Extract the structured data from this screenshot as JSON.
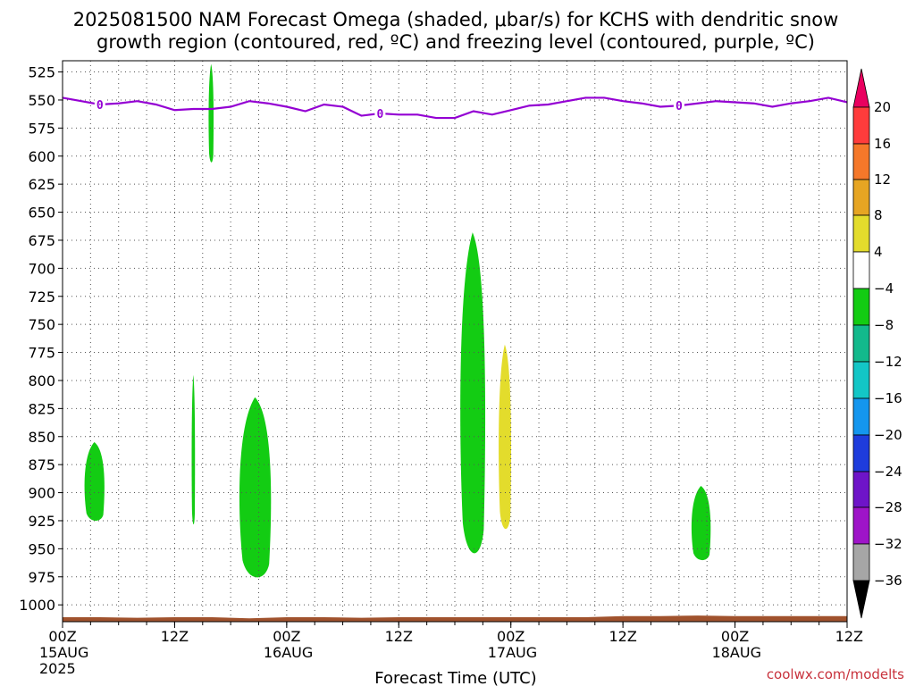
{
  "chart_data": {
    "type": "heatmap",
    "title": {
      "line1": "2025081500 NAM Forecast Omega (shaded, μbar/s) for KCHS with dendritic snow",
      "line2": "growth region (contoured, red, ºC) and freezing level (contoured, purple, ºC)"
    },
    "xlabel": "Forecast Time (UTC)",
    "x_range_hours": [
      0,
      84
    ],
    "x_ticks": [
      {
        "h": 0,
        "label": "00Z",
        "date": "15AUG",
        "year": "2025"
      },
      {
        "h": 12,
        "label": "12Z"
      },
      {
        "h": 24,
        "label": "00Z",
        "date": "16AUG"
      },
      {
        "h": 36,
        "label": "12Z"
      },
      {
        "h": 48,
        "label": "00Z",
        "date": "17AUG"
      },
      {
        "h": 60,
        "label": "12Z"
      },
      {
        "h": 72,
        "label": "00Z",
        "date": "18AUG"
      },
      {
        "h": 84,
        "label": "12Z"
      }
    ],
    "y_axis": {
      "units": "mb",
      "range": [
        515,
        1015
      ],
      "inverted": true,
      "ticks": [
        525,
        550,
        575,
        600,
        625,
        650,
        675,
        700,
        725,
        750,
        775,
        800,
        825,
        850,
        875,
        900,
        925,
        950,
        975,
        1000
      ]
    },
    "grid": true,
    "colorbar": {
      "labels": [
        "20",
        "16",
        "12",
        "8",
        "4",
        "−4",
        "−8",
        "−12",
        "−16",
        "−20",
        "−24",
        "−28",
        "−32",
        "−36"
      ],
      "colors": [
        "#e9005f",
        "#ff3c3c",
        "#f5782a",
        "#e6a523",
        "#e3dc2c",
        "#ffffff",
        "#13cc13",
        "#13b98c",
        "#13c6c6",
        "#1496ee",
        "#1e3cdc",
        "#6e14c8",
        "#9e14c8",
        "#a6a6a6",
        "#000000"
      ]
    },
    "omega_regions": [
      {
        "color": "#13cc13",
        "h": [
          2.2,
          4.6
        ],
        "p": [
          855,
          927
        ]
      },
      {
        "color": "#13cc13",
        "h": [
          13.8,
          14.2
        ],
        "p": [
          795,
          932
        ]
      },
      {
        "color": "#13cc13",
        "h": [
          15.6,
          16.2
        ],
        "p": [
          518,
          608
        ]
      },
      {
        "color": "#13cc13",
        "h": [
          18.7,
          22.5
        ],
        "p": [
          815,
          980
        ]
      },
      {
        "color": "#13cc13",
        "h": [
          42.4,
          45.4
        ],
        "p": [
          668,
          962
        ]
      },
      {
        "color": "#e3dc2c",
        "h": [
          46.6,
          48.1
        ],
        "p": [
          768,
          937
        ]
      },
      {
        "color": "#13cc13",
        "h": [
          67.2,
          69.5
        ],
        "p": [
          894,
          962
        ]
      }
    ],
    "freezing_level": {
      "label": "0",
      "hours": [
        0,
        2,
        4,
        6,
        8,
        10,
        12,
        14,
        16,
        18,
        20,
        22,
        24,
        26,
        28,
        30,
        32,
        34,
        36,
        38,
        40,
        42,
        44,
        46,
        48,
        50,
        52,
        54,
        56,
        58,
        60,
        62,
        64,
        66,
        68,
        70,
        72,
        74,
        76,
        78,
        80,
        82,
        84
      ],
      "p": [
        548,
        551,
        554,
        553,
        551,
        554,
        559,
        558,
        558,
        556,
        551,
        553,
        556,
        560,
        554,
        556,
        564,
        562,
        563,
        563,
        566,
        566,
        560,
        563,
        559,
        555,
        554,
        551,
        548,
        548,
        551,
        553,
        556,
        555,
        553,
        551,
        552,
        553,
        556,
        553,
        551,
        548,
        552
      ]
    },
    "surface_color": "#a0522d",
    "credit": "coolwx.com/modelts"
  }
}
